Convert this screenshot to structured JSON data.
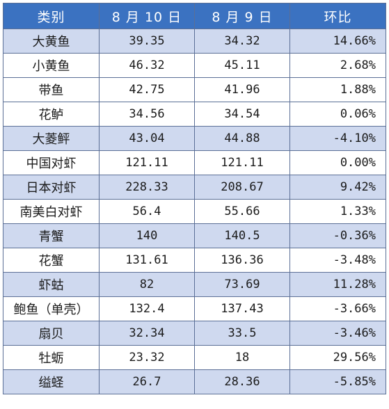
{
  "table": {
    "headers": [
      "类别",
      "8 月 10 日",
      "8 月 9 日",
      "环比"
    ],
    "rows": [
      [
        "大黄鱼",
        "39.35",
        "34.32",
        "14.66%"
      ],
      [
        "小黄鱼",
        "46.32",
        "45.11",
        "2.68%"
      ],
      [
        "带鱼",
        "42.75",
        "41.96",
        "1.88%"
      ],
      [
        "花鲈",
        "34.56",
        "34.54",
        "0.06%"
      ],
      [
        "大菱鲆",
        "43.04",
        "44.88",
        "-4.10%"
      ],
      [
        "中国对虾",
        "121.11",
        "121.11",
        "0.00%"
      ],
      [
        "日本对虾",
        "228.33",
        "208.67",
        "9.42%"
      ],
      [
        "南美白对虾",
        "56.4",
        "55.66",
        "1.33%"
      ],
      [
        "青蟹",
        "140",
        "140.5",
        "-0.36%"
      ],
      [
        "花蟹",
        "131.61",
        "136.36",
        "-3.48%"
      ],
      [
        "虾蛄",
        "82",
        "73.69",
        "11.28%"
      ],
      [
        "鲍鱼（单壳）",
        "132.4",
        "137.43",
        "-3.66%"
      ],
      [
        "扇贝",
        "32.34",
        "33.5",
        "-3.46%"
      ],
      [
        "牡蛎",
        "23.32",
        "18",
        "29.56%"
      ],
      [
        "缢蛏",
        "26.7",
        "28.36",
        "-5.85%"
      ]
    ]
  },
  "colors": {
    "header_bg": "#3b72c1",
    "header_text": "#ffffff",
    "stripe_bg": "#cfd9ef",
    "border": "#5b6f96"
  }
}
